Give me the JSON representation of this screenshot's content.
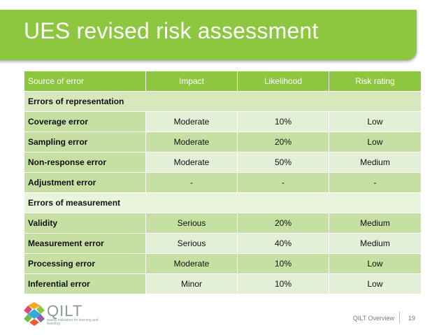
{
  "slide": {
    "title": "UES revised risk assessment"
  },
  "table": {
    "headers": [
      "Source of error",
      "Impact",
      "Likelihood",
      "Risk rating"
    ],
    "sections": [
      {
        "label": "Errors of representation",
        "rows": [
          {
            "source": "Coverage error",
            "impact": "Moderate",
            "likelihood": "10%",
            "risk": "Low"
          },
          {
            "source": "Sampling error",
            "impact": "Moderate",
            "likelihood": "20%",
            "risk": "Low"
          },
          {
            "source": "Non-response error",
            "impact": "Moderate",
            "likelihood": "50%",
            "risk": "Medium"
          },
          {
            "source": "Adjustment error",
            "impact": "-",
            "likelihood": "-",
            "risk": "-"
          }
        ]
      },
      {
        "label": "Errors of measurement",
        "rows": [
          {
            "source": "Validity",
            "impact": "Serious",
            "likelihood": "20%",
            "risk": "Medium"
          },
          {
            "source": "Measurement error",
            "impact": "Serious",
            "likelihood": "40%",
            "risk": "Medium"
          },
          {
            "source": "Processing error",
            "impact": "Moderate",
            "likelihood": "10%",
            "risk": "Low"
          },
          {
            "source": "Inferential error",
            "impact": "Minor",
            "likelihood": "10%",
            "risk": "Low"
          }
        ]
      }
    ]
  },
  "footer": {
    "logo_text": "QILT",
    "logo_tagline": "quality indicators for learning and teaching",
    "label": "QILT Overview",
    "page_number": "19"
  },
  "colors": {
    "accent": "#8dc63f",
    "row_dark": "#c6e0a4",
    "row_light": "#e4efd7"
  }
}
